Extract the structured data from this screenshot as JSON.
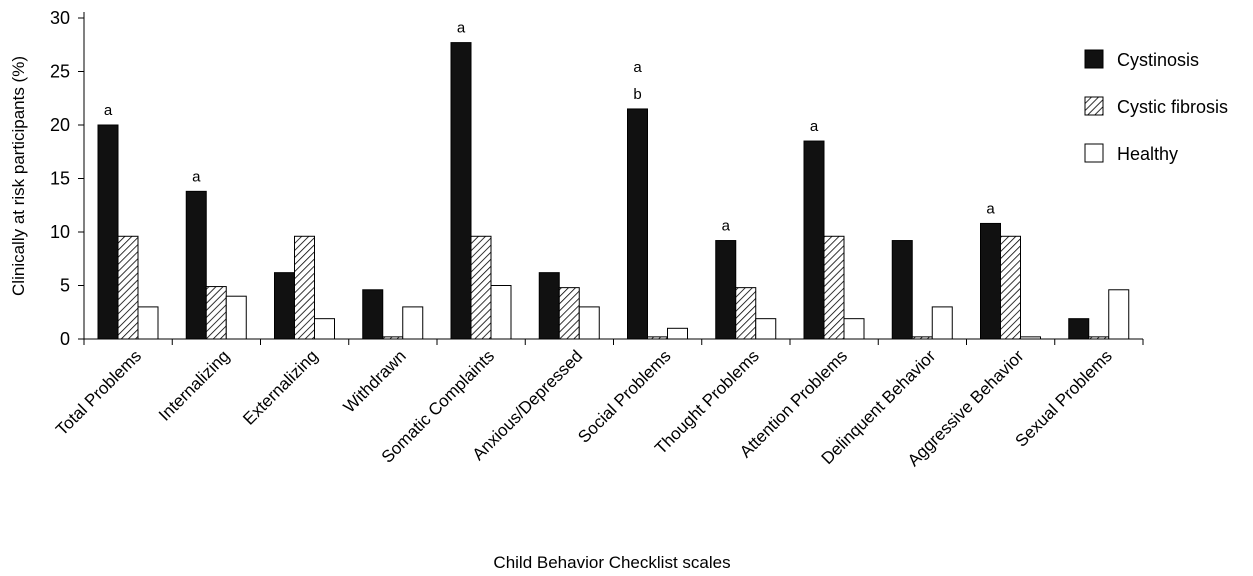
{
  "chart_data": {
    "type": "bar",
    "title": "",
    "xlabel": "Child Behavior Checklist scales",
    "ylabel": "Clinically at risk participants (%)",
    "ylim": [
      0,
      30
    ],
    "yticks": [
      0,
      5,
      10,
      15,
      20,
      25,
      30
    ],
    "grid": false,
    "legend_position": "top-right",
    "categories": [
      "Total Problems",
      "Internalizing",
      "Externalizing",
      "Withdrawn",
      "Somatic Complaints",
      "Anxious/Depressed",
      "Social Problems",
      "Thought  Problems",
      "Attention Problems",
      "Delinquent Behavior",
      "Aggressive Behavior",
      "Sexual Problems"
    ],
    "series": [
      {
        "name": "Cystinosis",
        "fill": "solid",
        "color": "#111111",
        "values": [
          20.0,
          13.8,
          6.2,
          4.6,
          27.7,
          6.2,
          21.5,
          9.2,
          18.5,
          9.2,
          10.8,
          1.9
        ]
      },
      {
        "name": "Cystic fibrosis",
        "fill": "hatched",
        "color": "#000000",
        "values": [
          9.6,
          4.9,
          9.6,
          0.2,
          9.6,
          4.8,
          0.2,
          4.8,
          9.6,
          0.2,
          9.6,
          0.2
        ]
      },
      {
        "name": "Healthy",
        "fill": "empty",
        "color": "#ffffff",
        "values": [
          3.0,
          4.0,
          1.9,
          3.0,
          5.0,
          3.0,
          1.0,
          1.9,
          1.9,
          3.0,
          0.2,
          4.6
        ]
      }
    ],
    "annotations": [
      {
        "category": "Total Problems",
        "text": "a"
      },
      {
        "category": "Internalizing",
        "text": "a"
      },
      {
        "category": "Somatic Complaints",
        "text": "a"
      },
      {
        "category": "Social Problems",
        "text": "a"
      },
      {
        "category": "Social Problems",
        "text": "b"
      },
      {
        "category": "Thought  Problems",
        "text": "a"
      },
      {
        "category": "Attention Problems",
        "text": "a"
      },
      {
        "category": "Aggressive Behavior",
        "text": "a"
      }
    ]
  }
}
